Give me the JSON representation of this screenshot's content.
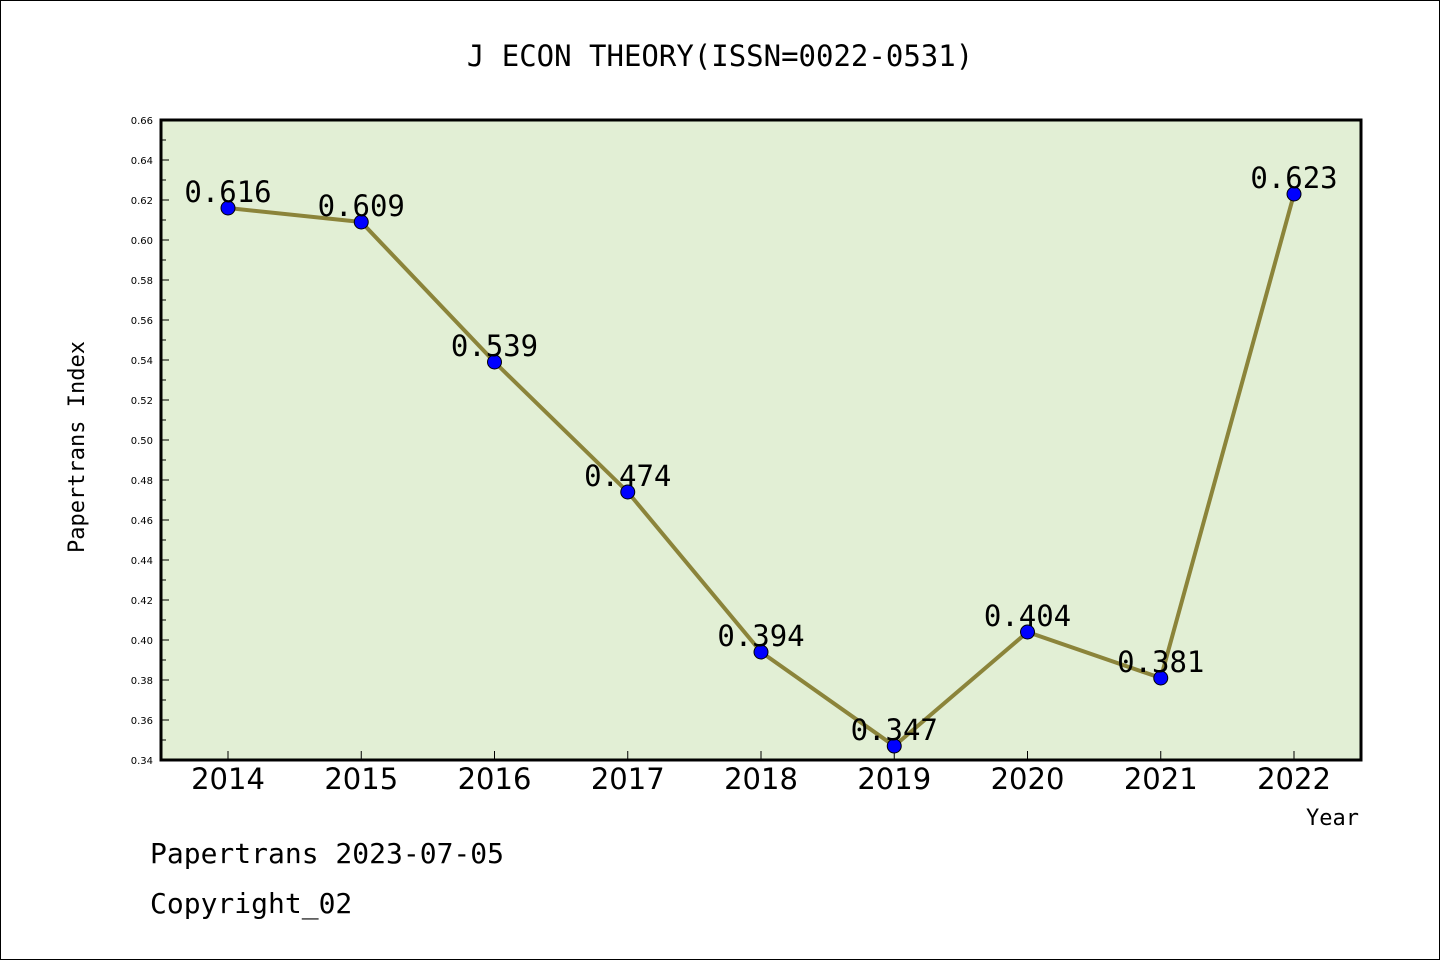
{
  "chart_data": {
    "type": "line",
    "title": "J ECON THEORY(ISSN=0022-0531)",
    "xlabel": "Year",
    "ylabel": "Papertrans Index",
    "categories": [
      "2014",
      "2015",
      "2016",
      "2017",
      "2018",
      "2019",
      "2020",
      "2021",
      "2022"
    ],
    "values": [
      0.616,
      0.609,
      0.539,
      0.474,
      0.394,
      0.347,
      0.404,
      0.381,
      0.623
    ],
    "data_labels": [
      "0.616",
      "0.609",
      "0.539",
      "0.474",
      "0.394",
      "0.347",
      "0.404",
      "0.381",
      "0.623"
    ],
    "ylim": [
      0.34,
      0.66
    ],
    "yticks": [
      "0.34",
      "0.36",
      "0.38",
      "0.40",
      "0.42",
      "0.44",
      "0.46",
      "0.48",
      "0.50",
      "0.52",
      "0.54",
      "0.56",
      "0.58",
      "0.60",
      "0.62",
      "0.64",
      "0.66"
    ],
    "grid": false,
    "colors": {
      "plot_background": "#e2efd5",
      "line": "#8b843a",
      "marker": "#0000ff"
    }
  },
  "footer": {
    "line1": "Papertrans 2023-07-05",
    "line2": "Copyright_02"
  }
}
